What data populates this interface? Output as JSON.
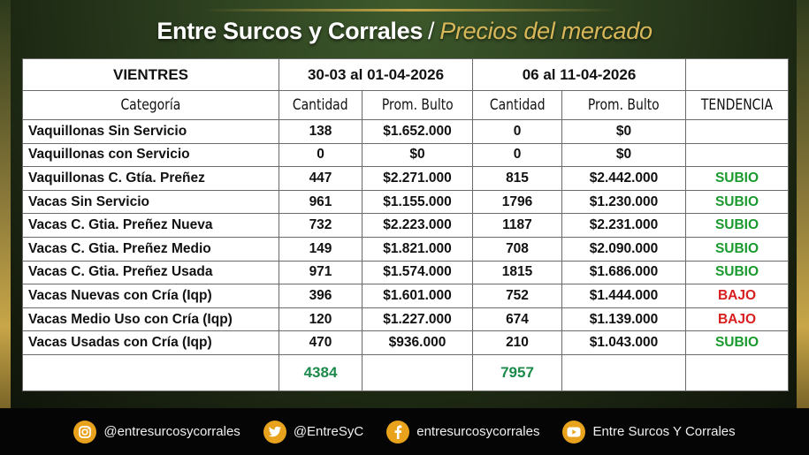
{
  "header": {
    "title_main": "Entre Surcos y Corrales",
    "separator": "/",
    "title_sub": "Precios del mercado"
  },
  "table": {
    "section_label": "VIENTRES",
    "period1": "30-03 al 01-04-2026",
    "period2": "06 al 11-04-2026",
    "col_category": "Categoría",
    "col_qty1": "Cantidad",
    "col_price1": "Prom. Bulto",
    "col_qty2": "Cantidad",
    "col_price2": "Prom. Bulto",
    "col_trend": "TENDENCIA",
    "rows": [
      {
        "cat": "Vaquillonas Sin Servicio",
        "q1": "138",
        "p1": "$1.652.000",
        "q2": "0",
        "p2": "$0",
        "trend": ""
      },
      {
        "cat": "Vaquillonas con Servicio",
        "q1": "0",
        "p1": "$0",
        "q2": "0",
        "p2": "$0",
        "trend": ""
      },
      {
        "cat": "Vaquillonas C. Gtía. Preñez",
        "q1": "447",
        "p1": "$2.271.000",
        "q2": "815",
        "p2": "$2.442.000",
        "trend": "SUBIO"
      },
      {
        "cat": "Vacas Sin Servicio",
        "q1": "961",
        "p1": "$1.155.000",
        "q2": "1796",
        "p2": "$1.230.000",
        "trend": "SUBIO"
      },
      {
        "cat": "Vacas C. Gtia. Preñez Nueva",
        "q1": "732",
        "p1": "$2.223.000",
        "q2": "1187",
        "p2": "$2.231.000",
        "trend": "SUBIO"
      },
      {
        "cat": "Vacas C. Gtia. Preñez Medio",
        "q1": "149",
        "p1": "$1.821.000",
        "q2": "708",
        "p2": "$2.090.000",
        "trend": "SUBIO"
      },
      {
        "cat": "Vacas C. Gtia. Preñez Usada",
        "q1": "971",
        "p1": "$1.574.000",
        "q2": "1815",
        "p2": "$1.686.000",
        "trend": "SUBIO"
      },
      {
        "cat": "Vacas Nuevas con Cría (Iqp)",
        "q1": "396",
        "p1": "$1.601.000",
        "q2": "752",
        "p2": "$1.444.000",
        "trend": "BAJO"
      },
      {
        "cat": "Vacas Medio Uso con Cría (Iqp)",
        "q1": "120",
        "p1": "$1.227.000",
        "q2": "674",
        "p2": "$1.139.000",
        "trend": "BAJO"
      },
      {
        "cat": "Vacas Usadas con Cría (Iqp)",
        "q1": "470",
        "p1": "$936.000",
        "q2": "210",
        "p2": "$1.043.000",
        "trend": "SUBIO"
      }
    ],
    "total1": "4384",
    "total2": "7957"
  },
  "footer": {
    "instagram": "@entresurcosycorrales",
    "twitter": "@EntreSyC",
    "facebook": "entresurcosycorrales",
    "youtube": "Entre Surcos Y Corrales",
    "icon_color": "#e8a21c"
  },
  "colors": {
    "up": "#1a9a2e",
    "down": "#d81e1e",
    "total": "#1b8a4a",
    "accent_gold": "#d9b85a"
  }
}
